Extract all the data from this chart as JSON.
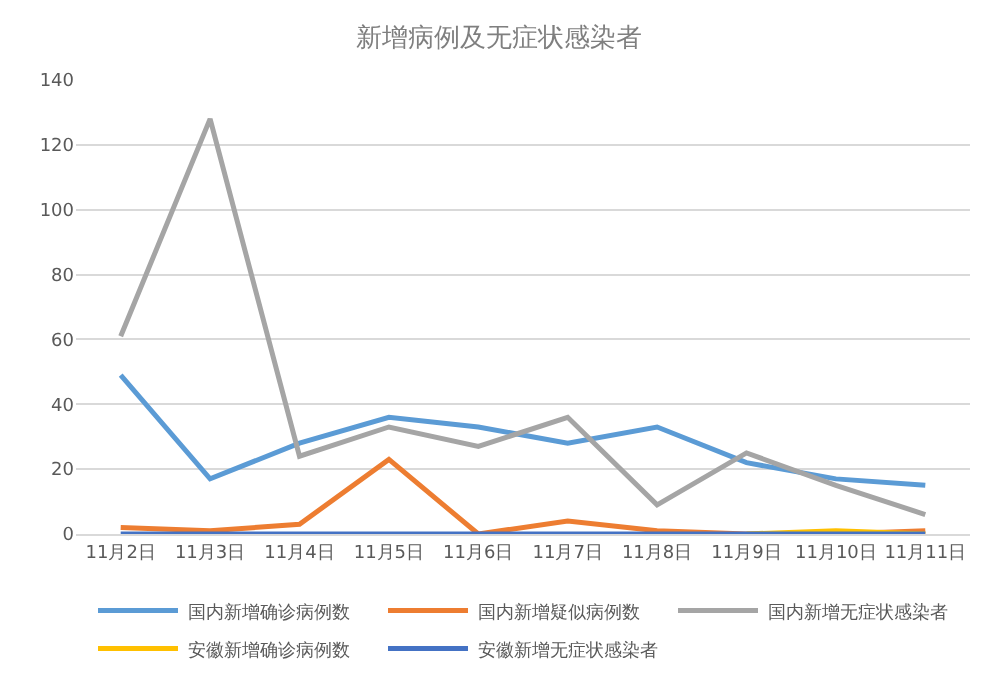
{
  "chart_data": {
    "type": "line",
    "title": "新增病例及无症状感染者",
    "categories": [
      "11月2日",
      "11月3日",
      "11月4日",
      "11月5日",
      "11月6日",
      "11月7日",
      "11月8日",
      "11月9日",
      "11月10日",
      "11月11日"
    ],
    "series": [
      {
        "name": "国内新增确诊病例数",
        "color": "#5b9bd5",
        "values": [
          49,
          17,
          28,
          36,
          33,
          28,
          33,
          22,
          17,
          15
        ]
      },
      {
        "name": "国内新增疑似病例数",
        "color": "#ed7d31",
        "values": [
          2,
          1,
          3,
          23,
          0,
          4,
          1,
          0,
          0,
          1
        ]
      },
      {
        "name": "国内新增无症状感染者",
        "color": "#a5a5a5",
        "values": [
          61,
          128,
          24,
          33,
          27,
          36,
          9,
          25,
          15,
          6
        ]
      },
      {
        "name": "安徽新增确诊病例数",
        "color": "#ffc000",
        "values": [
          null,
          null,
          null,
          null,
          null,
          null,
          null,
          0,
          1,
          0
        ]
      },
      {
        "name": "安徽新增无症状感染者",
        "color": "#4472c4",
        "values": [
          0,
          0,
          0,
          0,
          0,
          0,
          0,
          0,
          0,
          0
        ]
      }
    ],
    "ylim": [
      0,
      140
    ],
    "yticks": [
      0,
      20,
      40,
      60,
      80,
      100,
      120,
      140
    ],
    "grid": "y",
    "legend": "bottom",
    "marker": "none",
    "line_style": "solid"
  }
}
